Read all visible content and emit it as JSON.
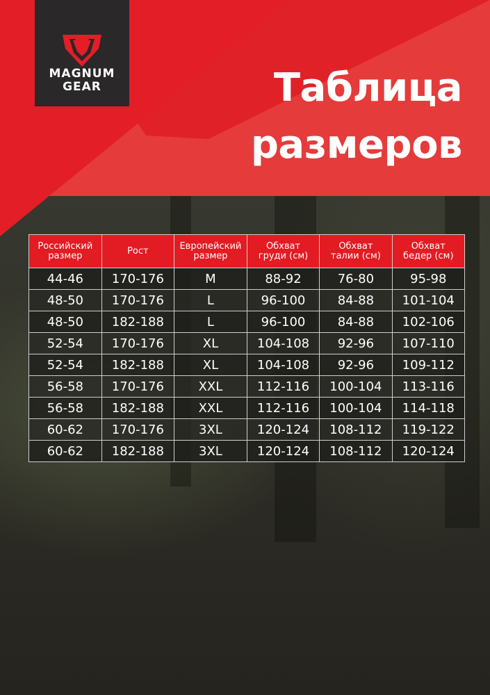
{
  "brand": {
    "name_line1": "MAGNUM",
    "name_line2": "GEAR",
    "colors": {
      "red": "#e31e26",
      "dark": "#2a2828"
    }
  },
  "title": {
    "line1": "Таблица",
    "line2": "размеров"
  },
  "table": {
    "headers": [
      [
        "Российский",
        "размер"
      ],
      [
        "Рост",
        ""
      ],
      [
        "Европейский",
        "размер"
      ],
      [
        "Обхват",
        "груди (см)"
      ],
      [
        "Обхват",
        "талии (см)"
      ],
      [
        "Обхват",
        "бедер (см)"
      ]
    ],
    "rows": [
      [
        "44-46",
        "170-176",
        "M",
        "88-92",
        "76-80",
        "95-98"
      ],
      [
        "48-50",
        "170-176",
        "L",
        "96-100",
        "84-88",
        "101-104"
      ],
      [
        "48-50",
        "182-188",
        "L",
        "96-100",
        "84-88",
        "102-106"
      ],
      [
        "52-54",
        "170-176",
        "XL",
        "104-108",
        "92-96",
        "107-110"
      ],
      [
        "52-54",
        "182-188",
        "XL",
        "104-108",
        "92-96",
        "109-112"
      ],
      [
        "56-58",
        "170-176",
        "XXL",
        "112-116",
        "100-104",
        "113-116"
      ],
      [
        "56-58",
        "182-188",
        "XXL",
        "112-116",
        "100-104",
        "114-118"
      ],
      [
        "60-62",
        "170-176",
        "3XL",
        "120-124",
        "108-112",
        "119-122"
      ],
      [
        "60-62",
        "182-188",
        "3XL",
        "120-124",
        "108-112",
        "120-124"
      ]
    ]
  }
}
